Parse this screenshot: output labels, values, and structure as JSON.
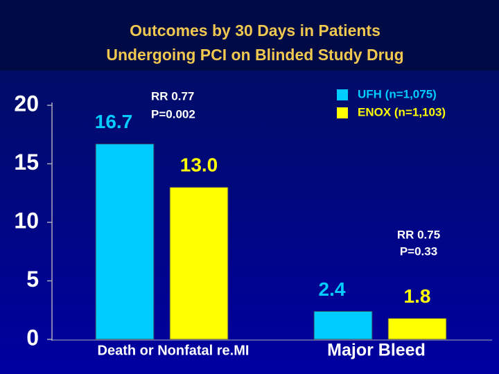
{
  "chart_data": {
    "type": "bar",
    "title": [
      "Outcomes by 30 Days in Patients",
      "Undergoing PCI on Blinded Study Drug"
    ],
    "categories": [
      "Death or Nonfatal re.MI",
      "Major Bleed"
    ],
    "series": [
      {
        "name": "UFH (n=1,075)",
        "color": "#00ccff",
        "values": [
          16.7,
          2.4
        ],
        "value_labels": [
          "16.7",
          "2.4"
        ]
      },
      {
        "name": "ENOX (n=1,103)",
        "color": "#ffff00",
        "values": [
          13,
          1.8
        ],
        "value_labels": [
          "13.0",
          "1.8"
        ]
      }
    ],
    "annotations": [
      "RR 0.77",
      "P=0.002",
      "RR 0.75",
      "P=0.33"
    ],
    "ylim": [
      0,
      20
    ],
    "yticks": [
      0,
      5,
      10,
      15,
      20
    ],
    "grid": false
  }
}
